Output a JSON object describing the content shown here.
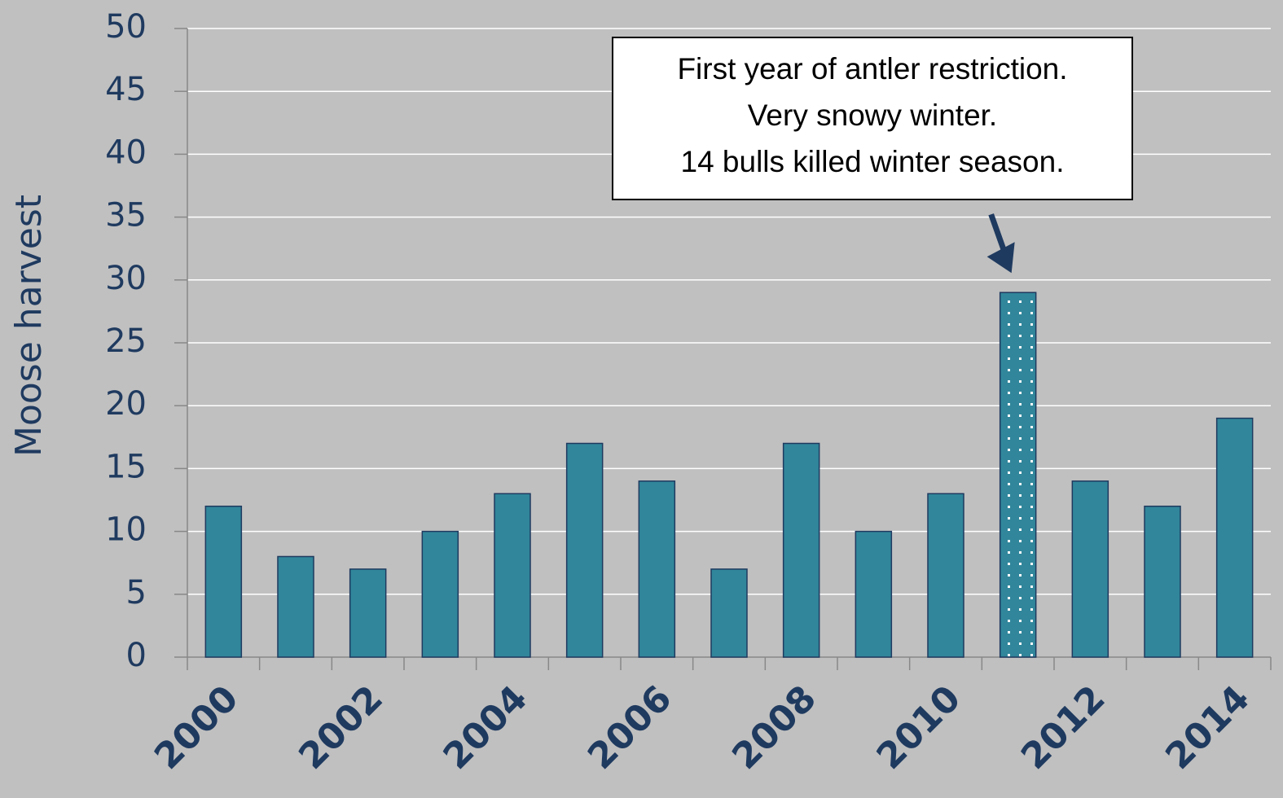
{
  "chart_data": {
    "type": "bar",
    "y_label": "Moose harvest",
    "categories": [
      "2000",
      null,
      "2002",
      null,
      "2004",
      null,
      "2006",
      null,
      "2008",
      null,
      "2010",
      null,
      "2012",
      null,
      "2014"
    ],
    "values": [
      12,
      8,
      7,
      10,
      13,
      17,
      14,
      7,
      17,
      10,
      13,
      29,
      14,
      12,
      19
    ],
    "hatch": [
      false,
      false,
      false,
      false,
      false,
      false,
      false,
      false,
      false,
      false,
      false,
      true,
      false,
      false,
      false
    ],
    "color": "#31869b",
    "ylim": [
      0,
      50
    ],
    "yticks": [
      0,
      5,
      10,
      15,
      20,
      25,
      30,
      35,
      40,
      45,
      50
    ],
    "grid": true,
    "annotation": [
      "First year of antler restriction.",
      "Very snowy winter.",
      "14 bulls killed winter season."
    ]
  }
}
